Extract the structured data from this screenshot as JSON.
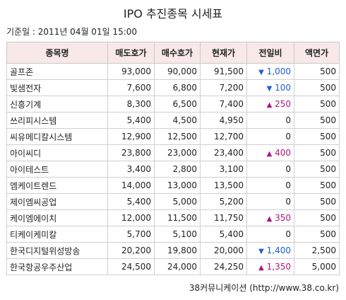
{
  "title": "IPO 추진종목 시세표",
  "base_time": "기준일 : 2011년 04월 01일 15:00",
  "table": {
    "headers": [
      "종목명",
      "매도호가",
      "매수호가",
      "현재가",
      "전일비",
      "액면가"
    ],
    "rows": [
      {
        "name": "골프존",
        "sell": "93,000",
        "buy": "90,000",
        "current": "91,500",
        "change_dir": "down",
        "change": "1,000",
        "face": "500"
      },
      {
        "name": "빛샘전자",
        "sell": "7,600",
        "buy": "6,800",
        "current": "7,200",
        "change_dir": "down",
        "change": "100",
        "face": "500"
      },
      {
        "name": "신흥기계",
        "sell": "8,300",
        "buy": "6,500",
        "current": "7,400",
        "change_dir": "up",
        "change": "250",
        "face": "500"
      },
      {
        "name": "쓰리피시스템",
        "sell": "5,400",
        "buy": "4,500",
        "current": "4,950",
        "change_dir": "none",
        "change": "0",
        "face": "500"
      },
      {
        "name": "씨유메디칼시스템",
        "sell": "12,900",
        "buy": "12,500",
        "current": "12,700",
        "change_dir": "none",
        "change": "0",
        "face": "500"
      },
      {
        "name": "아이씨디",
        "sell": "23,800",
        "buy": "23,000",
        "current": "23,400",
        "change_dir": "up",
        "change": "400",
        "face": "500"
      },
      {
        "name": "아이테스트",
        "sell": "3,400",
        "buy": "2,800",
        "current": "3,100",
        "change_dir": "none",
        "change": "0",
        "face": "500"
      },
      {
        "name": "엠케이트렌드",
        "sell": "14,000",
        "buy": "13,000",
        "current": "13,500",
        "change_dir": "none",
        "change": "0",
        "face": "500"
      },
      {
        "name": "제이엠씨공업",
        "sell": "5,400",
        "buy": "5,000",
        "current": "5,200",
        "change_dir": "none",
        "change": "0",
        "face": "500"
      },
      {
        "name": "케이엠에이치",
        "sell": "12,000",
        "buy": "11,500",
        "current": "11,750",
        "change_dir": "up",
        "change": "350",
        "face": "500"
      },
      {
        "name": "티케이케미칼",
        "sell": "5,700",
        "buy": "5,100",
        "current": "5,400",
        "change_dir": "none",
        "change": "0",
        "face": "500"
      },
      {
        "name": "한국디지털위성방송",
        "sell": "20,200",
        "buy": "19,800",
        "current": "20,000",
        "change_dir": "down",
        "change": "1,400",
        "face": "2,500"
      },
      {
        "name": "한국항공우주산업",
        "sell": "24,500",
        "buy": "24,000",
        "current": "24,250",
        "change_dir": "up",
        "change": "1,350",
        "face": "5,000"
      }
    ]
  },
  "arrows": {
    "up": "▲",
    "down": "▼"
  },
  "colors": {
    "header_bg": "#f8e8e8",
    "down": "#1f5fcf",
    "up": "#b0157a"
  },
  "footer": "38커뮤니케이션 (http://www.38.co.kr)"
}
